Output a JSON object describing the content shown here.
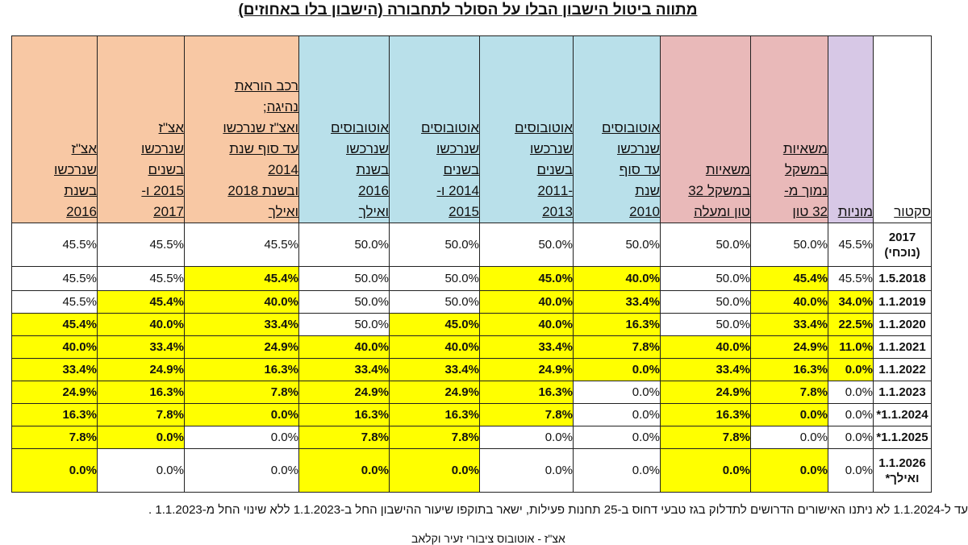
{
  "title": "מתווה ביטול הישבון הבלו על הסולר לתחבורה (הישבון בלו באחוזים)",
  "columns": [
    {
      "label": "סקטור",
      "color": "#ffffff"
    },
    {
      "label": "מוניות",
      "color": "#d7c8e6"
    },
    {
      "label": "משאיות\nבמשקל\nנמוך מ-\n32 טון",
      "color": "#e9b9b9"
    },
    {
      "label": "משאיות\nבמשקל 32\nטון ומעלה",
      "color": "#e9b9b9"
    },
    {
      "label": "אוטובוסים\nשנרכשו\nעד סוף\nשנת\n2010",
      "color": "#b9e0ea"
    },
    {
      "label": "אוטובוסים\nשנרכשו\nבשנים\n-2011\n2013",
      "color": "#b9e0ea"
    },
    {
      "label": "אוטובוסים\nשנרכשו\nבשנים\n2014 ו-\n2015",
      "color": "#b9e0ea"
    },
    {
      "label": "אוטובוסים\nשנרכשו\nבשנת\n2016\nואילך",
      "color": "#b9e0ea"
    },
    {
      "label": "רכב הוראת\nנהיגה;\nואצ\"ז שנרכשו\nעד סוף שנת\n2014\nובשנת 2018\nואילך",
      "color": "#f8c8a4"
    },
    {
      "label": "אצ\"ז\nשנרכשו\nבשנים\n2015 ו-\n2017",
      "color": "#f8c8a4"
    },
    {
      "label": "אצ\"ז\nשנרכשו\nבשנת\n2016",
      "color": "#f8c8a4"
    }
  ],
  "rows": [
    {
      "sector": "2017\n(נוכחי)",
      "values": [
        "45.5%",
        "50.0%",
        "50.0%",
        "50.0%",
        "50.0%",
        "50.0%",
        "50.0%",
        "45.5%",
        "45.5%",
        "45.5%"
      ],
      "hl": [
        0,
        0,
        0,
        0,
        0,
        0,
        0,
        0,
        0,
        0
      ]
    },
    {
      "sector": "1.5.2018",
      "values": [
        "45.5%",
        "45.4%",
        "50.0%",
        "40.0%",
        "45.0%",
        "50.0%",
        "50.0%",
        "45.4%",
        "45.5%",
        "45.5%"
      ],
      "hl": [
        0,
        1,
        0,
        1,
        1,
        0,
        0,
        1,
        0,
        0
      ]
    },
    {
      "sector": "1.1.2019",
      "values": [
        "34.0%",
        "40.0%",
        "50.0%",
        "33.4%",
        "40.0%",
        "50.0%",
        "50.0%",
        "40.0%",
        "45.4%",
        "45.5%"
      ],
      "hl": [
        1,
        1,
        0,
        1,
        1,
        0,
        0,
        1,
        1,
        0
      ]
    },
    {
      "sector": "1.1.2020",
      "values": [
        "22.5%",
        "33.4%",
        "50.0%",
        "16.3%",
        "40.0%",
        "45.0%",
        "50.0%",
        "33.4%",
        "40.0%",
        "45.4%"
      ],
      "hl": [
        1,
        1,
        0,
        1,
        1,
        1,
        0,
        1,
        1,
        1
      ]
    },
    {
      "sector": "1.1.2021",
      "values": [
        "11.0%",
        "24.9%",
        "40.0%",
        "7.8%",
        "33.4%",
        "40.0%",
        "40.0%",
        "24.9%",
        "33.4%",
        "40.0%"
      ],
      "hl": [
        1,
        1,
        1,
        1,
        1,
        1,
        1,
        1,
        1,
        1
      ]
    },
    {
      "sector": "1.1.2022",
      "values": [
        "0.0%",
        "16.3%",
        "33.4%",
        "0.0%",
        "24.9%",
        "33.4%",
        "33.4%",
        "16.3%",
        "24.9%",
        "33.4%"
      ],
      "hl": [
        1,
        1,
        1,
        1,
        1,
        1,
        1,
        1,
        1,
        1
      ]
    },
    {
      "sector": "1.1.2023",
      "values": [
        "0.0%",
        "7.8%",
        "24.9%",
        "0.0%",
        "16.3%",
        "24.9%",
        "24.9%",
        "7.8%",
        "16.3%",
        "24.9%"
      ],
      "hl": [
        0,
        1,
        1,
        0,
        1,
        1,
        1,
        1,
        1,
        1
      ]
    },
    {
      "sector": "1.1.2024*",
      "values": [
        "0.0%",
        "0.0%",
        "16.3%",
        "0.0%",
        "7.8%",
        "16.3%",
        "16.3%",
        "0.0%",
        "7.8%",
        "16.3%"
      ],
      "hl": [
        0,
        1,
        1,
        0,
        1,
        1,
        1,
        1,
        1,
        1
      ]
    },
    {
      "sector": "1.1.2025*",
      "values": [
        "0.0%",
        "0.0%",
        "7.8%",
        "0.0%",
        "0.0%",
        "7.8%",
        "7.8%",
        "0.0%",
        "0.0%",
        "7.8%"
      ],
      "hl": [
        0,
        0,
        1,
        0,
        0,
        1,
        1,
        0,
        1,
        1
      ]
    },
    {
      "sector": "1.1.2026\nואילך*",
      "values": [
        "0.0%",
        "0.0%",
        "0.0%",
        "0.0%",
        "0.0%",
        "0.0%",
        "0.0%",
        "0.0%",
        "0.0%",
        "0.0%"
      ],
      "hl": [
        0,
        1,
        1,
        0,
        0,
        1,
        1,
        0,
        0,
        1
      ]
    }
  ],
  "footnote": "עד ל-1.1.2024 לא ניתנו האישורים הדרושים לתדלוק בגז טבעי דחוס ב-25 תחנות פעילות, ישאר בתוקפו שיעור ההישבון החל ב-1.1.2023 ללא שינוי החל מ-1.1.2023 .",
  "footnote2": "אצ\"ז - אוטובוס ציבורי זעיר וקלאב"
}
